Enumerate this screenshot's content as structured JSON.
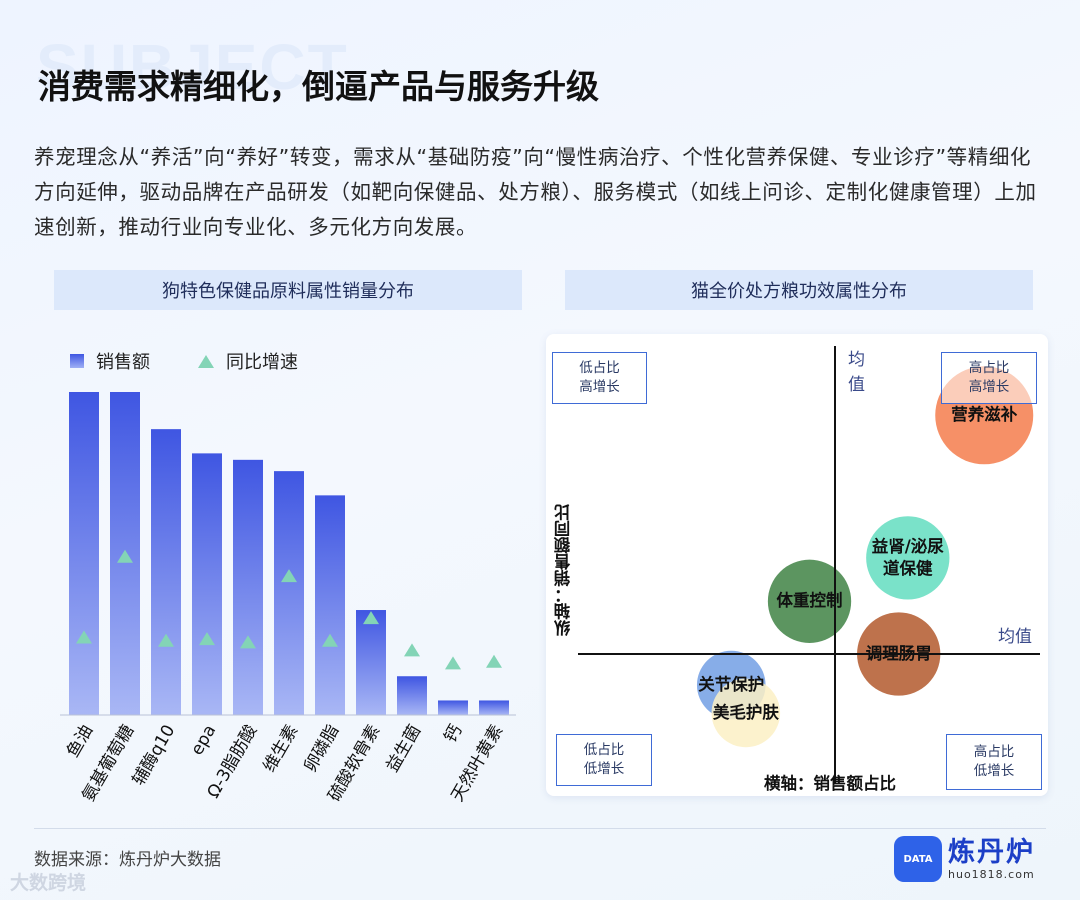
{
  "header": {
    "bg_word": "SUBJECT",
    "title": "消费需求精细化，倒逼产品与服务升级",
    "intro": "养宠理念从“养活”向“养好”转变，需求从“基础防疫”向“慢性病治疗、个性化营养保健、专业诊疗”等精细化方向延伸，驱动品牌在产品研发（如靶向保健品、处方粮）、服务模式（如线上问诊、定制化健康管理）上加速创新，推动行业向专业化、多元化方向发展。"
  },
  "left_panel": {
    "heading": "狗特色保健品原料属性销量分布"
  },
  "right_panel": {
    "heading": "猫全价处方粮功效属性分布"
  },
  "chart_data": [
    {
      "type": "bar",
      "legend": {
        "bar": "销售额",
        "marker": "同比增速",
        "placement": "top-left"
      },
      "categories": [
        "鱼油",
        "氨基葡萄糖",
        "辅酶q10",
        "epa",
        "Ω-3脂肪酸",
        "维生素",
        "卵磷脂",
        "硫酸软骨素",
        "益生菌",
        "钙",
        "天然叶黄素"
      ],
      "series": [
        {
          "name": "销售额",
          "type": "bar",
          "values": [
            100,
            100,
            88.5,
            81,
            79,
            75.5,
            68,
            32.5,
            12,
            4.5,
            4.5
          ]
        },
        {
          "name": "同比增速",
          "type": "scatter",
          "marker": "triangle",
          "values": [
            24,
            49,
            23,
            23.5,
            22.5,
            43,
            23,
            30,
            20,
            16,
            16.5
          ]
        }
      ],
      "ylim": [
        0,
        100
      ]
    },
    {
      "type": "scatter",
      "subtype": "bubble-quadrant",
      "xlabel": "横轴：销售额占比",
      "ylabel": "纵轴：销售额同比",
      "x_mean_label": "均值",
      "y_mean_label": "均值",
      "xlim": [
        -1,
        1
      ],
      "ylim": [
        -1,
        1
      ],
      "quadrants": {
        "top_left": [
          "低占比",
          "高增长"
        ],
        "top_right": [
          "高占比",
          "高增长"
        ],
        "bottom_left": [
          "低占比",
          "低增长"
        ],
        "bottom_right": [
          "高占比",
          "低增长"
        ]
      },
      "points": [
        {
          "label": "营养滋补",
          "x": 0.82,
          "y": 0.77,
          "size": 1.0,
          "color": "#f5875a"
        },
        {
          "label": "益肾/泌尿道保健",
          "x": 0.4,
          "y": 0.31,
          "size": 0.85,
          "color": "#6fe0c4"
        },
        {
          "label": "体重控制",
          "x": -0.14,
          "y": 0.17,
          "size": 0.85,
          "color": "#4e8c52"
        },
        {
          "label": "调理肠胃",
          "x": 0.35,
          "y": 0.0,
          "size": 0.85,
          "color": "#b8663d"
        },
        {
          "label": "关节保护",
          "x": -0.57,
          "y": -0.1,
          "size": 0.7,
          "color": "#7da6e6"
        },
        {
          "label": "美毛护肤",
          "x": -0.49,
          "y": -0.19,
          "size": 0.7,
          "color": "#fbf0c4"
        }
      ]
    }
  ],
  "footer": {
    "source": "数据来源：炼丹炉大数据",
    "brand_name": "炼丹炉",
    "brand_url": "huo1818.com",
    "logo_text": "DATA",
    "watermark": "大数跨境"
  },
  "colors": {
    "bar_top": "#3f56e2",
    "bar_bottom": "#a9b7f5",
    "marker": "#83d4b6",
    "box_border": "#3f6bd6",
    "panel_head_bg": "#dce8fb"
  }
}
